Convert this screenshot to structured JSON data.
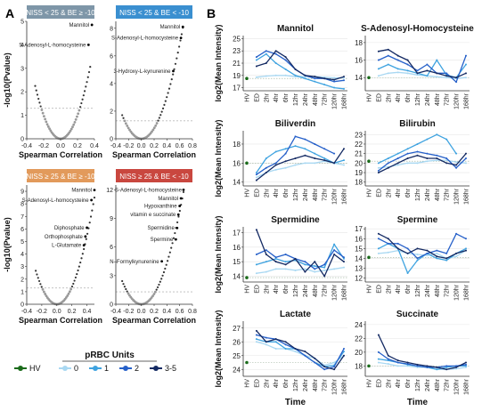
{
  "panels": {
    "A": "A",
    "B": "B"
  },
  "volcano_axes": {
    "xlabel": "Spearman Correlation",
    "ylabel": "-log10(Pvalue)"
  },
  "line_axes": {
    "xlabel": "Time",
    "ylabel": "log2(Mean Intensity)"
  },
  "legend": {
    "title": "pRBC Units",
    "items": [
      {
        "label": "HV",
        "color": "#1a6b1a"
      },
      {
        "label": "0",
        "color": "#a9d8f2"
      },
      {
        "label": "1",
        "color": "#3fa3e0"
      },
      {
        "label": "2",
        "color": "#2660c9"
      },
      {
        "label": "3-5",
        "color": "#142a63"
      }
    ]
  },
  "chart_data": [
    {
      "type": "scatter",
      "panel": "A",
      "title": "NISS < 25 & BE ≥ -10",
      "title_color": "#7e96a8",
      "xlim": [
        -0.4,
        0.4
      ],
      "ylim": [
        0,
        5
      ],
      "xticks": [
        -0.4,
        -0.2,
        0.0,
        0.2,
        0.4
      ],
      "yticks": [
        0,
        1,
        2,
        3,
        4,
        5
      ],
      "threshold": 1.3,
      "curve": {
        "k": 25,
        "xmin": -0.3,
        "xmax": 0.35
      },
      "labeled_points": [
        {
          "label": "Mannitol",
          "x": 0.37,
          "y": 4.85,
          "dx": -3,
          "dy": 0
        },
        {
          "label": "S-Adenosyl-L-homocysteine",
          "x": 0.33,
          "y": 4.0,
          "dx": -3,
          "dy": 0
        }
      ]
    },
    {
      "type": "scatter",
      "panel": "A",
      "title": "NISS < 25 & BE < -10",
      "title_color": "#3a8fd0",
      "xlim": [
        -0.4,
        0.8
      ],
      "ylim": [
        0,
        8.5
      ],
      "xticks": [
        -0.4,
        -0.2,
        0.0,
        0.2,
        0.4,
        0.6,
        0.8
      ],
      "yticks": [
        0,
        2,
        4,
        6,
        8
      ],
      "threshold": 1.3,
      "curve": {
        "k": 19,
        "xmin": -0.3,
        "xmax": 0.67
      },
      "labeled_points": [
        {
          "label": "Mannitol",
          "x": 0.65,
          "y": 8.1,
          "dx": -3,
          "dy": 0
        },
        {
          "label": "S-Adenosyl-L-homocysteine",
          "x": 0.62,
          "y": 7.3,
          "dx": -3,
          "dy": 0
        },
        {
          "label": "3-Hydroxy-L-kynurenine",
          "x": 0.5,
          "y": 4.9,
          "dx": -3,
          "dy": 0
        }
      ]
    },
    {
      "type": "scatter",
      "panel": "A",
      "title": "NISS ≥ 25 & BE ≥ -10",
      "title_color": "#e29a5b",
      "xlim": [
        -0.4,
        0.5
      ],
      "ylim": [
        0,
        9.5
      ],
      "xticks": [
        -0.4,
        -0.2,
        0.0,
        0.2,
        0.4
      ],
      "yticks": [
        0,
        1,
        2,
        3,
        4,
        5,
        6,
        7,
        8,
        9
      ],
      "threshold": 1.3,
      "curve": {
        "k": 34,
        "xmin": -0.28,
        "xmax": 0.5
      },
      "labeled_points": [
        {
          "label": "Mannitol",
          "x": 0.5,
          "y": 9.1,
          "dx": -3,
          "dy": 0
        },
        {
          "label": "S-Adenosyl-L-homocysteine",
          "x": 0.46,
          "y": 8.3,
          "dx": -3,
          "dy": 0
        },
        {
          "label": "Diphosphate",
          "x": 0.4,
          "y": 6.1,
          "dx": -3,
          "dy": 0
        },
        {
          "label": "Orthophosphate",
          "x": 0.38,
          "y": 5.4,
          "dx": -3,
          "dy": 0
        },
        {
          "label": "L-Glutamate",
          "x": 0.36,
          "y": 4.7,
          "dx": -3,
          "dy": 0
        }
      ]
    },
    {
      "type": "scatter",
      "panel": "A",
      "title": "NISS ≥ 25 & BE < -10",
      "title_color": "#c9473f",
      "xlim": [
        -0.4,
        0.8
      ],
      "ylim": [
        0,
        12.5
      ],
      "xticks": [
        -0.4,
        -0.2,
        0.0,
        0.2,
        0.4,
        0.6,
        0.8
      ],
      "yticks": [
        0,
        3,
        6,
        9,
        12
      ],
      "threshold": 1.3,
      "curve": {
        "k": 27,
        "xmin": -0.3,
        "xmax": 0.66
      },
      "labeled_points": [
        {
          "label": "S-Adenosyl-L-homocysteine",
          "x": 0.66,
          "y": 12.0,
          "dx": -2,
          "dy": 0
        },
        {
          "label": "Mannitol",
          "x": 0.62,
          "y": 11.1,
          "dx": -3,
          "dy": 0
        },
        {
          "label": "Hypoxanthine",
          "x": 0.6,
          "y": 10.3,
          "dx": -3,
          "dy": 0
        },
        {
          "label": "vitamin e succinate",
          "x": 0.58,
          "y": 9.4,
          "dx": -3,
          "dy": 0
        },
        {
          "label": "Spermidine",
          "x": 0.56,
          "y": 8.0,
          "dx": -3,
          "dy": 0
        },
        {
          "label": "Spermine",
          "x": 0.54,
          "y": 6.8,
          "dx": -3,
          "dy": 0
        },
        {
          "label": "N–Formylkynurenine",
          "x": 0.32,
          "y": 4.5,
          "dx": -3,
          "dy": 0
        }
      ]
    },
    {
      "type": "line",
      "panel": "B",
      "title": "Mannitol",
      "ylim": [
        16.5,
        25.5
      ],
      "yticks": [
        17,
        19,
        21,
        23,
        25
      ],
      "categories": [
        "HV",
        "ED",
        "2hr",
        "4hr",
        "6hr",
        "12hr",
        "24hr",
        "48hr",
        "72hr",
        "120hr",
        "168hr"
      ],
      "hv": 18.5,
      "series": [
        {
          "color": "#a9d8f2",
          "values": [
            null,
            18.7,
            18.9,
            19.0,
            19.0,
            18.8,
            18.8,
            18.8,
            18.7,
            18.6,
            18.6
          ]
        },
        {
          "color": "#3fa3e0",
          "values": [
            null,
            21.5,
            22.5,
            21.0,
            20.0,
            19.0,
            18.5,
            18.0,
            17.5,
            17.0,
            16.8
          ]
        },
        {
          "color": "#2660c9",
          "values": [
            null,
            22.0,
            23.0,
            22.5,
            21.5,
            20.0,
            19.0,
            18.5,
            18.5,
            18.0,
            18.2
          ]
        },
        {
          "color": "#142a63",
          "values": [
            null,
            20.5,
            21.0,
            23.0,
            22.0,
            20.0,
            19.0,
            18.8,
            18.5,
            18.3,
            18.8
          ]
        }
      ]
    },
    {
      "type": "line",
      "panel": "B",
      "title": "S-Adenosyl-Homocysteine",
      "ylim": [
        12.5,
        18.8
      ],
      "yticks": [
        14,
        16,
        18
      ],
      "categories": [
        "HV",
        "ED",
        "2hr",
        "4hr",
        "6hr",
        "12hr",
        "24hr",
        "48hr",
        "72hr",
        "120hr",
        "168hr"
      ],
      "hv": 14.0,
      "series": [
        {
          "color": "#a9d8f2",
          "values": [
            null,
            14.2,
            14.5,
            14.6,
            14.5,
            14.3,
            14.2,
            14.1,
            14.0,
            13.9,
            14.0
          ]
        },
        {
          "color": "#3fa3e0",
          "values": [
            null,
            15.0,
            15.5,
            15.0,
            14.8,
            14.5,
            14.2,
            16.0,
            14.3,
            14.0,
            15.5
          ]
        },
        {
          "color": "#2660c9",
          "values": [
            null,
            16.0,
            16.5,
            16.0,
            15.5,
            14.8,
            15.5,
            14.5,
            14.5,
            13.5,
            16.5
          ]
        },
        {
          "color": "#142a63",
          "values": [
            null,
            17.0,
            17.2,
            16.5,
            16.0,
            14.5,
            14.8,
            14.5,
            14.2,
            14.0,
            14.5
          ]
        }
      ]
    },
    {
      "type": "line",
      "panel": "B",
      "title": "Biliverdin",
      "ylim": [
        13.6,
        19.4
      ],
      "yticks": [
        14,
        16,
        18
      ],
      "categories": [
        "HV",
        "ED",
        "2hr",
        "4hr",
        "6hr",
        "12hr",
        "24hr",
        "48hr",
        "72hr",
        "120hr",
        "168hr"
      ],
      "hv": 16.0,
      "series": [
        {
          "color": "#a9d8f2",
          "values": [
            null,
            14.5,
            15.0,
            15.3,
            15.5,
            15.8,
            16.0,
            16.0,
            16.2,
            16.0,
            15.8
          ]
        },
        {
          "color": "#3fa3e0",
          "values": [
            null,
            15.0,
            16.5,
            17.2,
            17.5,
            17.8,
            17.5,
            17.0,
            16.5,
            16.0,
            16.3
          ]
        },
        {
          "color": "#2660c9",
          "values": [
            null,
            14.8,
            15.5,
            16.0,
            17.0,
            18.8,
            18.5,
            18.0,
            17.5,
            17.0,
            null
          ]
        },
        {
          "color": "#142a63",
          "values": [
            null,
            14.2,
            15.0,
            15.8,
            16.2,
            16.5,
            16.8,
            16.5,
            16.3,
            16.0,
            17.5
          ]
        }
      ]
    },
    {
      "type": "line",
      "panel": "B",
      "title": "Bilirubin",
      "ylim": [
        17.6,
        23.4
      ],
      "yticks": [
        18,
        19,
        20,
        21,
        22,
        23
      ],
      "categories": [
        "HV",
        "ED",
        "2hr",
        "4hr",
        "6hr",
        "12hr",
        "24hr",
        "48hr",
        "72hr",
        "120hr",
        "168hr"
      ],
      "hv": 20.2,
      "series": [
        {
          "color": "#a9d8f2",
          "values": [
            null,
            19.5,
            19.6,
            19.8,
            20.0,
            20.0,
            20.2,
            20.3,
            20.3,
            20.1,
            20.0
          ]
        },
        {
          "color": "#3fa3e0",
          "values": [
            null,
            20.0,
            20.5,
            21.0,
            21.5,
            22.0,
            22.5,
            23.0,
            22.5,
            21.0,
            null
          ]
        },
        {
          "color": "#2660c9",
          "values": [
            null,
            19.2,
            20.0,
            20.5,
            21.0,
            21.2,
            21.0,
            20.8,
            20.5,
            19.5,
            20.5
          ]
        },
        {
          "color": "#142a63",
          "values": [
            null,
            19.0,
            19.5,
            20.0,
            20.5,
            20.8,
            20.5,
            20.5,
            20.0,
            19.8,
            21.0
          ]
        }
      ]
    },
    {
      "type": "line",
      "panel": "B",
      "title": "Spermidine",
      "ylim": [
        13.6,
        17.4
      ],
      "yticks": [
        14,
        15,
        16,
        17
      ],
      "categories": [
        "HV",
        "ED",
        "2hr",
        "4hr",
        "6hr",
        "12hr",
        "24hr",
        "48hr",
        "72hr",
        "120hr",
        "168hr"
      ],
      "hv": 13.9,
      "series": [
        {
          "color": "#a9d8f2",
          "values": [
            null,
            14.2,
            14.3,
            14.5,
            14.5,
            14.4,
            14.5,
            14.3,
            14.4,
            14.5,
            14.6
          ]
        },
        {
          "color": "#3fa3e0",
          "values": [
            null,
            14.8,
            15.0,
            15.2,
            15.0,
            15.1,
            14.8,
            14.7,
            14.6,
            16.2,
            15.2
          ]
        },
        {
          "color": "#2660c9",
          "values": [
            null,
            15.5,
            15.8,
            15.3,
            15.5,
            15.2,
            15.0,
            14.5,
            14.8,
            15.8,
            15.3
          ]
        },
        {
          "color": "#142a63",
          "values": [
            null,
            17.2,
            15.5,
            15.0,
            14.8,
            15.2,
            14.3,
            15.0,
            14.0,
            15.5,
            15.0
          ]
        }
      ]
    },
    {
      "type": "line",
      "panel": "B",
      "title": "Spermine",
      "ylim": [
        11.6,
        17.2
      ],
      "yticks": [
        12,
        13,
        14,
        15,
        16,
        17
      ],
      "categories": [
        "HV",
        "ED",
        "2hr",
        "4hr",
        "6hr",
        "12hr",
        "24hr",
        "48hr",
        "72hr",
        "120hr",
        "168hr"
      ],
      "hv": 14.1,
      "series": [
        {
          "color": "#a9d8f2",
          "values": [
            null,
            14.5,
            14.6,
            14.8,
            14.5,
            14.4,
            14.3,
            14.5,
            14.0,
            14.2,
            14.8
          ]
        },
        {
          "color": "#3fa3e0",
          "values": [
            null,
            15.0,
            15.5,
            15.0,
            12.5,
            13.8,
            14.5,
            14.0,
            13.8,
            14.5,
            15.0
          ]
        },
        {
          "color": "#2660c9",
          "values": [
            null,
            16.0,
            15.5,
            15.5,
            15.0,
            14.0,
            14.5,
            14.8,
            14.5,
            16.5,
            16.0
          ]
        },
        {
          "color": "#142a63",
          "values": [
            null,
            16.5,
            16.0,
            15.0,
            14.5,
            15.0,
            14.8,
            14.2,
            14.0,
            14.5,
            14.8
          ]
        }
      ]
    },
    {
      "type": "line",
      "panel": "B",
      "title": "Lactate",
      "ylim": [
        23.5,
        27.5
      ],
      "yticks": [
        24,
        25,
        26,
        27
      ],
      "categories": [
        "HV",
        "ED",
        "2hr",
        "4hr",
        "6hr",
        "12hr",
        "24hr",
        "48hr",
        "72hr",
        "120hr",
        "168hr"
      ],
      "hv": 24.5,
      "series": [
        {
          "color": "#a9d8f2",
          "values": [
            null,
            26.0,
            25.8,
            25.5,
            25.5,
            25.3,
            25.0,
            24.8,
            24.3,
            24.5,
            25.0
          ]
        },
        {
          "color": "#3fa3e0",
          "values": [
            null,
            26.2,
            26.0,
            26.0,
            25.5,
            25.5,
            25.0,
            24.5,
            24.2,
            24.3,
            25.3
          ]
        },
        {
          "color": "#2660c9",
          "values": [
            null,
            26.5,
            26.3,
            26.2,
            25.8,
            25.5,
            25.0,
            24.5,
            24.0,
            24.2,
            25.5
          ]
        },
        {
          "color": "#142a63",
          "values": [
            null,
            26.8,
            26.0,
            26.2,
            26.0,
            25.5,
            25.3,
            24.8,
            24.2,
            24.0,
            25.0
          ]
        }
      ]
    },
    {
      "type": "line",
      "panel": "B",
      "title": "Succinate",
      "ylim": [
        16.5,
        24.5
      ],
      "yticks": [
        18,
        20,
        22,
        24
      ],
      "categories": [
        "HV",
        "ED",
        "2hr",
        "4hr",
        "6hr",
        "12hr",
        "24hr",
        "48hr",
        "72hr",
        "120hr",
        "168hr"
      ],
      "hv": 18.0,
      "series": [
        {
          "color": "#a9d8f2",
          "values": [
            null,
            18.5,
            18.3,
            18.0,
            18.0,
            17.8,
            17.8,
            17.5,
            17.5,
            17.6,
            17.8
          ]
        },
        {
          "color": "#3fa3e0",
          "values": [
            null,
            19.0,
            18.8,
            18.5,
            18.2,
            18.0,
            17.8,
            17.5,
            17.8,
            18.0,
            18.0
          ]
        },
        {
          "color": "#2660c9",
          "values": [
            null,
            20.0,
            19.0,
            18.5,
            18.3,
            18.0,
            17.8,
            17.8,
            18.0,
            18.0,
            18.2
          ]
        },
        {
          "color": "#142a63",
          "values": [
            null,
            22.5,
            19.5,
            18.8,
            18.5,
            18.2,
            18.0,
            17.8,
            17.5,
            17.8,
            18.5
          ]
        }
      ]
    }
  ]
}
